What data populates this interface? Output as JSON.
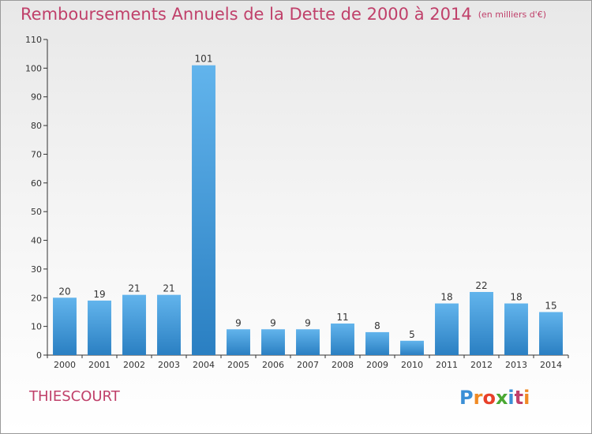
{
  "header": {
    "title": "Remboursements Annuels de la Dette de 2000 à 2014",
    "unit": "(en milliers d'€)"
  },
  "footer": {
    "commune": "THIESCOURT",
    "logo": {
      "text": "Proxiti",
      "letters": [
        "P",
        "r",
        "o",
        "x",
        "i",
        "t",
        "i"
      ],
      "colors": [
        "#3b8fd6",
        "#f08a24",
        "#e8402a",
        "#4aa833",
        "#3b8fd6",
        "#c0406a",
        "#f08a24"
      ]
    }
  },
  "colors": {
    "bar_top": "#62b4ec",
    "bar_bottom": "#2a7fc2",
    "title": "#c0406a",
    "axis": "#333333"
  },
  "chart_data": {
    "type": "bar",
    "title": "Remboursements Annuels de la Dette de 2000 à 2014",
    "xlabel": "",
    "ylabel": "",
    "ylim": [
      0,
      110
    ],
    "yticks": [
      0,
      10,
      20,
      30,
      40,
      50,
      60,
      70,
      80,
      90,
      100,
      110
    ],
    "grid": false,
    "categories": [
      "2000",
      "2001",
      "2002",
      "2003",
      "2004",
      "2005",
      "2006",
      "2007",
      "2008",
      "2009",
      "2010",
      "2011",
      "2012",
      "2013",
      "2014"
    ],
    "values": [
      20,
      19,
      21,
      21,
      101,
      9,
      9,
      9,
      11,
      8,
      5,
      18,
      22,
      18,
      15
    ]
  }
}
